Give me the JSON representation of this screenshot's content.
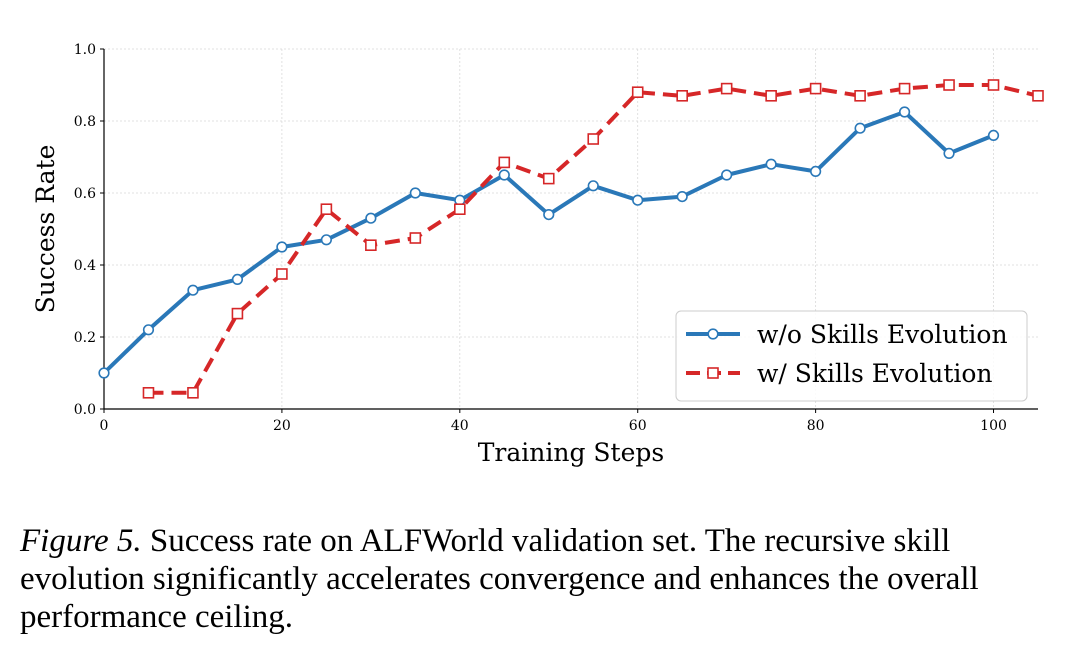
{
  "chart_data": {
    "type": "line",
    "x_axis_label": "Training Steps",
    "y_axis_label": "Success Rate",
    "xlim": [
      0,
      105
    ],
    "ylim": [
      0.0,
      1.0
    ],
    "xticks": [
      "0",
      "20",
      "40",
      "60",
      "80",
      "100"
    ],
    "yticks": [
      "0.0",
      "0.2",
      "0.4",
      "0.6",
      "0.8",
      "1.0"
    ],
    "grid": true,
    "legend_position": "bottom-right",
    "series": [
      {
        "name": "w/o Skills Evolution",
        "color": "#2a78b8",
        "line_style": "solid",
        "marker": "circle",
        "x": [
          0,
          5,
          10,
          15,
          20,
          25,
          30,
          35,
          40,
          45,
          50,
          55,
          60,
          65,
          70,
          75,
          80,
          85,
          90,
          95,
          100
        ],
        "y": [
          0.1,
          0.22,
          0.33,
          0.36,
          0.45,
          0.47,
          0.53,
          0.6,
          0.58,
          0.65,
          0.54,
          0.62,
          0.58,
          0.59,
          0.65,
          0.68,
          0.66,
          0.78,
          0.825,
          0.71,
          0.76
        ]
      },
      {
        "name": "w/ Skills Evolution",
        "color": "#d62728",
        "line_style": "dashed",
        "marker": "square",
        "x": [
          5,
          10,
          15,
          20,
          25,
          30,
          35,
          40,
          45,
          50,
          55,
          60,
          65,
          70,
          75,
          80,
          85,
          90,
          95,
          100,
          105
        ],
        "y": [
          0.045,
          0.045,
          0.265,
          0.375,
          0.555,
          0.455,
          0.475,
          0.555,
          0.685,
          0.64,
          0.75,
          0.88,
          0.87,
          0.89,
          0.87,
          0.89,
          0.87,
          0.89,
          0.9,
          0.9,
          0.87
        ]
      }
    ]
  },
  "caption": {
    "label": "Figure 5.",
    "text": "Success rate on ALFWorld validation set. The recursive skill evolution significantly accelerates convergence and enhances the overall performance ceiling."
  }
}
